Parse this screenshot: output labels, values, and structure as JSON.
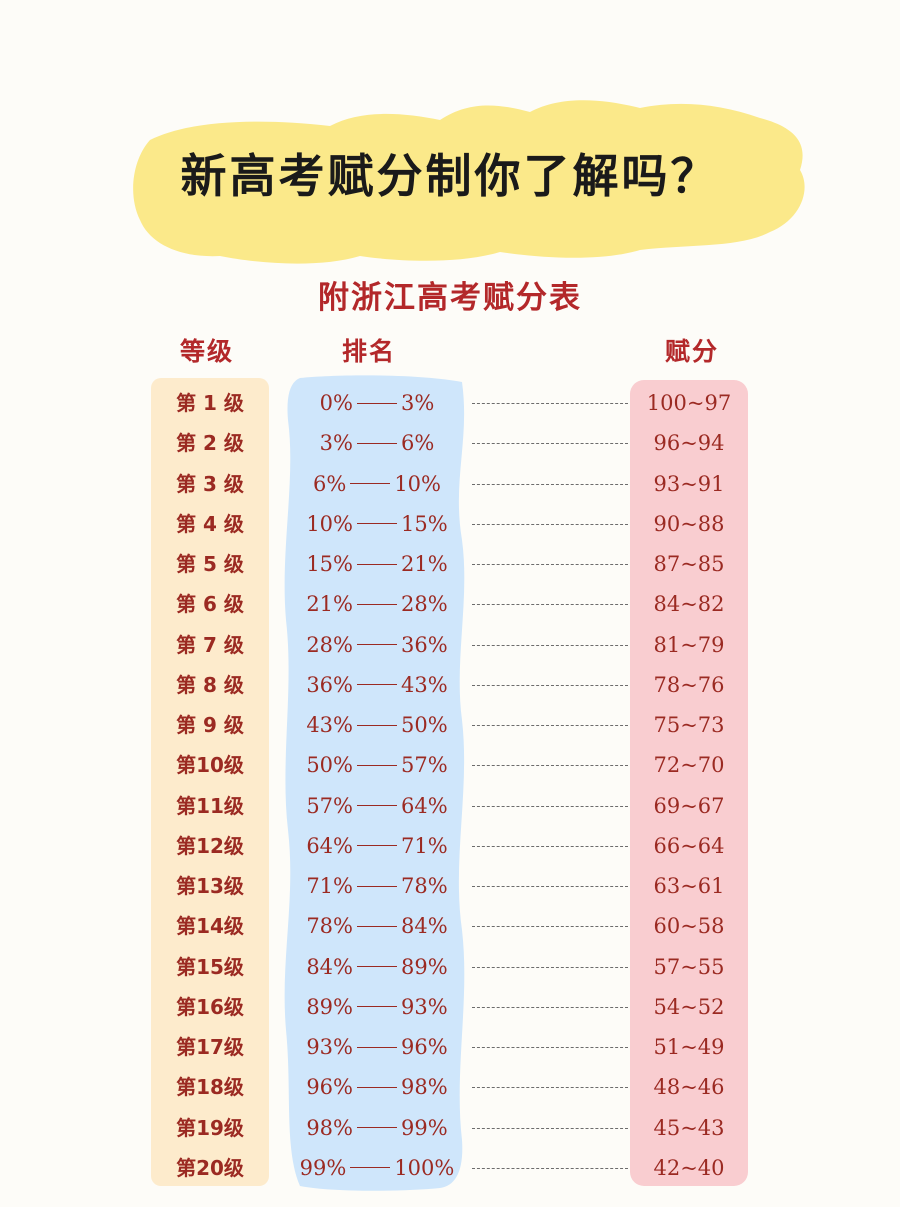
{
  "headline": "新高考赋分制你了解吗？",
  "subtitle": "附浙江高考赋分表",
  "headers": {
    "level": "等级",
    "rank": "排名",
    "score": "赋分"
  },
  "colors": {
    "highlight": "#fbe98a",
    "level_band": "#fdebcc",
    "rank_band": "#cfe6fb",
    "score_band": "#f9cdd0",
    "accent": "#b3282a"
  },
  "rows": [
    {
      "level": "第 1 级",
      "rank_from": "0%",
      "rank_to": "3%",
      "score": "100~97"
    },
    {
      "level": "第 2 级",
      "rank_from": "3%",
      "rank_to": "6%",
      "score": "96~94"
    },
    {
      "level": "第 3 级",
      "rank_from": "6%",
      "rank_to": "10%",
      "score": "93~91"
    },
    {
      "level": "第 4 级",
      "rank_from": "10%",
      "rank_to": "15%",
      "score": "90~88"
    },
    {
      "level": "第 5 级",
      "rank_from": "15%",
      "rank_to": "21%",
      "score": "87~85"
    },
    {
      "level": "第 6 级",
      "rank_from": "21%",
      "rank_to": "28%",
      "score": "84~82"
    },
    {
      "level": "第 7 级",
      "rank_from": "28%",
      "rank_to": "36%",
      "score": "81~79"
    },
    {
      "level": "第 8 级",
      "rank_from": "36%",
      "rank_to": "43%",
      "score": "78~76"
    },
    {
      "level": "第 9 级",
      "rank_from": "43%",
      "rank_to": "50%",
      "score": "75~73"
    },
    {
      "level": "第10级",
      "rank_from": "50%",
      "rank_to": "57%",
      "score": "72~70"
    },
    {
      "level": "第11级",
      "rank_from": "57%",
      "rank_to": "64%",
      "score": "69~67"
    },
    {
      "level": "第12级",
      "rank_from": "64%",
      "rank_to": "71%",
      "score": "66~64"
    },
    {
      "level": "第13级",
      "rank_from": "71%",
      "rank_to": "78%",
      "score": "63~61"
    },
    {
      "level": "第14级",
      "rank_from": "78%",
      "rank_to": "84%",
      "score": "60~58"
    },
    {
      "level": "第15级",
      "rank_from": "84%",
      "rank_to": "89%",
      "score": "57~55"
    },
    {
      "level": "第16级",
      "rank_from": "89%",
      "rank_to": "93%",
      "score": "54~52"
    },
    {
      "level": "第17级",
      "rank_from": "93%",
      "rank_to": "96%",
      "score": "51~49"
    },
    {
      "level": "第18级",
      "rank_from": "96%",
      "rank_to": "98%",
      "score": "48~46"
    },
    {
      "level": "第19级",
      "rank_from": "98%",
      "rank_to": "99%",
      "score": "45~43"
    },
    {
      "level": "第20级",
      "rank_from": "99%",
      "rank_to": "100%",
      "score": "42~40"
    }
  ]
}
